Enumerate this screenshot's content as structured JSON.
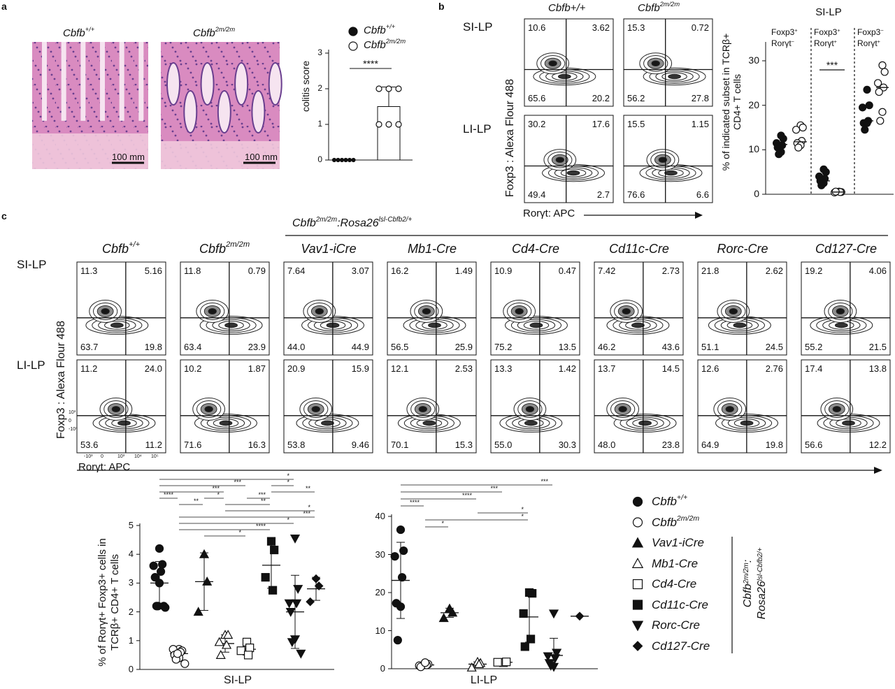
{
  "panel_labels": {
    "a": "a",
    "b": "b",
    "c": "c"
  },
  "genotypes": {
    "wt": {
      "base": "Cbfb",
      "sup": "+/+"
    },
    "mut": {
      "base": "Cbfb",
      "sup": "2m/2m"
    },
    "rescue_header": {
      "base1": "Cbfb",
      "sup1": "2m/2m",
      "mid": ":Rosa26",
      "sup2": "lsl-Cbfb2/+"
    }
  },
  "panel_a": {
    "scale_bar": "100 mm",
    "histology_colors": {
      "tissue": "#d98bc0",
      "nuclei": "#6a3f8f",
      "muscle": "#f0c8dc"
    }
  },
  "panel_b": {
    "row_labels": [
      "SI-LP",
      "LI-LP"
    ],
    "y_axis_label": "Foxp3 : Alexa Flour 488",
    "x_axis_label": "Rorγt: APC",
    "chart_title": "SI-LP",
    "subset_headers": [
      {
        "l1": "Foxp3",
        "s1": "+",
        "l2": "Rorγt",
        "s2": "−"
      },
      {
        "l1": "Foxp3",
        "s1": "+",
        "l2": "Rorγt",
        "s2": "+"
      },
      {
        "l1": "Foxp3",
        "s1": "−",
        "l2": "Rorγt",
        "s2": "+"
      }
    ]
  },
  "panel_c": {
    "row_labels": [
      "SI-LP",
      "LI-LP"
    ],
    "y_axis_label": "Foxp3 : Alexa Flour 488",
    "x_axis_label": "Rorγt: APC",
    "columns": [
      "Vav1-iCre",
      "Mb1-Cre",
      "Cd4-Cre",
      "Cd11c-Cre",
      "Rorc-Cre",
      "Cd127-Cre"
    ],
    "axis_ticks": {
      "y": [
        "10³",
        "0",
        "-10³"
      ],
      "x": [
        "-10³",
        "0",
        "10³",
        "10⁴",
        "10⁵"
      ]
    },
    "legend": [
      {
        "label": "Cbfb",
        "sup": "+/+",
        "marker": "circle-filled"
      },
      {
        "label": "Cbfb",
        "sup": "2m/2m",
        "marker": "circle-open"
      },
      {
        "label": "Vav1-iCre",
        "sup": "",
        "marker": "triangle-up-filled"
      },
      {
        "label": "Mb1-Cre",
        "sup": "",
        "marker": "triangle-up-open"
      },
      {
        "label": "Cd4-Cre",
        "sup": "",
        "marker": "square-open"
      },
      {
        "label": "Cd11c-Cre",
        "sup": "",
        "marker": "square-filled"
      },
      {
        "label": "Rorc-Cre",
        "sup": "",
        "marker": "triangle-down-filled"
      },
      {
        "label": "Cd127-Cre",
        "sup": "",
        "marker": "diamond-filled"
      }
    ],
    "legend_bracket": {
      "l1": "Cbfb",
      "s1": "2m/2m",
      "l1b": ":",
      "l2": "Rosa26",
      "s2": "lsl-Cbfb2/+"
    }
  },
  "flow_plots": {
    "panel_b": [
      {
        "tissue": "SI-LP",
        "genotype": "Cbfb+/+",
        "quadrants": {
          "ul": "10.6",
          "ur": "3.62",
          "ll": "65.6",
          "lr": "20.2"
        }
      },
      {
        "tissue": "SI-LP",
        "genotype": "Cbfb2m/2m",
        "quadrants": {
          "ul": "15.3",
          "ur": "0.72",
          "ll": "56.2",
          "lr": "27.8"
        }
      },
      {
        "tissue": "LI-LP",
        "genotype": "Cbfb+/+",
        "quadrants": {
          "ul": "30.2",
          "ur": "17.6",
          "ll": "49.4",
          "lr": "2.7"
        }
      },
      {
        "tissue": "LI-LP",
        "genotype": "Cbfb2m/2m",
        "quadrants": {
          "ul": "15.5",
          "ur": "1.15",
          "ll": "76.6",
          "lr": "6.6"
        }
      }
    ],
    "panel_c_si": [
      {
        "ul": "11.3",
        "ur": "5.16",
        "ll": "63.7",
        "lr": "19.8"
      },
      {
        "ul": "11.8",
        "ur": "0.79",
        "ll": "63.4",
        "lr": "23.9"
      },
      {
        "ul": "7.64",
        "ur": "3.07",
        "ll": "44.0",
        "lr": "44.9"
      },
      {
        "ul": "16.2",
        "ur": "1.49",
        "ll": "56.5",
        "lr": "25.9"
      },
      {
        "ul": "10.9",
        "ur": "0.47",
        "ll": "75.2",
        "lr": "13.5"
      },
      {
        "ul": "7.42",
        "ur": "2.73",
        "ll": "46.2",
        "lr": "43.6"
      },
      {
        "ul": "21.8",
        "ur": "2.62",
        "ll": "51.1",
        "lr": "24.5"
      },
      {
        "ul": "19.2",
        "ur": "4.06",
        "ll": "55.2",
        "lr": "21.5"
      }
    ],
    "panel_c_li": [
      {
        "ul": "11.2",
        "ur": "24.0",
        "ll": "53.6",
        "lr": "11.2"
      },
      {
        "ul": "10.2",
        "ur": "1.87",
        "ll": "71.6",
        "lr": "16.3"
      },
      {
        "ul": "20.9",
        "ur": "15.9",
        "ll": "53.8",
        "lr": "9.46"
      },
      {
        "ul": "12.1",
        "ur": "2.53",
        "ll": "70.1",
        "lr": "15.3"
      },
      {
        "ul": "13.3",
        "ur": "1.42",
        "ll": "55.0",
        "lr": "30.3"
      },
      {
        "ul": "13.7",
        "ur": "14.5",
        "ll": "48.0",
        "lr": "23.8"
      },
      {
        "ul": "12.6",
        "ur": "2.76",
        "ll": "64.9",
        "lr": "19.8"
      },
      {
        "ul": "17.4",
        "ur": "13.8",
        "ll": "56.6",
        "lr": "12.2"
      }
    ]
  },
  "chart_data": [
    {
      "id": "colitis",
      "type": "bar",
      "ylabel": "colitis score",
      "ylim": [
        0,
        3
      ],
      "yticks": [
        "0",
        "1",
        "2",
        "3"
      ],
      "categories": [
        "Cbfb+/+",
        "Cbfb2m/2m"
      ],
      "series": [
        {
          "name": "Cbfb+/+",
          "marker": "circle-filled",
          "points": [
            0,
            0,
            0,
            0,
            0,
            0
          ],
          "mean": 0
        },
        {
          "name": "Cbfb2m/2m",
          "marker": "circle-open",
          "points": [
            2,
            2,
            2,
            1,
            1,
            1
          ],
          "mean": 1.5,
          "sd": 0.55
        }
      ],
      "significance": [
        {
          "from": 0,
          "to": 1,
          "label": "****"
        }
      ]
    },
    {
      "id": "b_subsets",
      "type": "scatter",
      "title": "SI-LP",
      "ylabel": "% of indicated subset in TCRβ+ CD4+ T cells",
      "ylim": [
        0,
        30
      ],
      "yticks": [
        "0",
        "10",
        "20",
        "30"
      ],
      "groups": [
        {
          "wt": [
            13.2,
            12.5,
            11.5,
            11,
            10.5,
            9.5,
            9.0
          ],
          "mut": [
            15.5,
            15,
            14.5,
            12,
            11.5,
            11,
            10.5
          ],
          "wt_mean": 11.2,
          "mut_mean": 11.8
        },
        {
          "wt": [
            5.6,
            5.0,
            4.0,
            3.5,
            3.0,
            2.5,
            2.0
          ],
          "mut": [
            0.6,
            0.5,
            0.4,
            0.5,
            0.6
          ],
          "wt_mean": 3.0,
          "mut_mean": 0.5
        },
        {
          "wt": [
            23.5,
            20,
            19.5,
            16.5,
            16,
            16,
            14.5
          ],
          "mut": [
            29,
            27.5,
            25,
            24,
            23,
            18.5,
            16.5
          ],
          "wt_mean": 16.5,
          "mut_mean": 24
        }
      ],
      "significance": [
        {
          "group": 1,
          "label": "***"
        }
      ]
    },
    {
      "id": "c_si",
      "type": "scatter",
      "xlabel": "SI-LP",
      "ylabel": "% of Rorγt+ Foxp3+ cells in TCRβ+ CD4+ T cells",
      "ylim": [
        0,
        5
      ],
      "yticks": [
        "0",
        "1",
        "2",
        "3",
        "4",
        "5"
      ],
      "series": [
        {
          "name": "Cbfb+/+",
          "points": [
            4.2,
            3.65,
            3.6,
            3.4,
            3.2,
            3.0,
            2.2,
            2.15,
            2.2,
            2.2
          ],
          "mean": 3.0,
          "sd": 0.75
        },
        {
          "name": "Cbfb2m/2m",
          "points": [
            0.7,
            0.65,
            0.7,
            0.6,
            0.5,
            0.4,
            0.35,
            0.2,
            0.55
          ],
          "mean": 0.55,
          "sd": 0.15
        },
        {
          "name": "Vav1-iCre",
          "points": [
            4.0,
            3.05,
            2.0
          ],
          "mean": 3.05,
          "sd": 1.0
        },
        {
          "name": "Mb1-Cre",
          "points": [
            1.2,
            1.2,
            0.95,
            0.85,
            0.5
          ],
          "mean": 0.9,
          "sd": 0.3
        },
        {
          "name": "Cd4-Cre",
          "points": [
            0.95,
            0.75,
            0.65,
            0.5
          ],
          "mean": 0.7,
          "sd": 0.2
        },
        {
          "name": "Cd11c-Cre",
          "points": [
            4.45,
            4.15,
            3.2,
            2.75
          ],
          "mean": 3.62,
          "sd": 0.8
        },
        {
          "name": "Rorc-Cre",
          "points": [
            4.55,
            2.8,
            2.3,
            2.3,
            2.0,
            1.05,
            0.95,
            0.55
          ],
          "mean": 2.0,
          "sd": 1.27
        },
        {
          "name": "Cd127-Cre",
          "points": [
            3.15,
            2.9,
            2.35
          ],
          "mean": 2.8,
          "sd": 0.4
        }
      ],
      "significance": [
        {
          "from": 0,
          "to": 6,
          "label": "*"
        },
        {
          "from": 5,
          "to": 6,
          "label": "*"
        },
        {
          "from": 0,
          "to": 4,
          "label": "***"
        },
        {
          "from": 5,
          "to": 7,
          "label": "**"
        },
        {
          "from": 0,
          "to": 3,
          "label": "***"
        },
        {
          "from": 4,
          "to": 5,
          "label": "***"
        },
        {
          "from": 3,
          "to": 7,
          "label": "*"
        },
        {
          "from": 0,
          "to": 1,
          "label": "****"
        },
        {
          "from": 3,
          "to": 5,
          "label": "**"
        },
        {
          "from": 1,
          "to": 7,
          "label": "***"
        },
        {
          "from": 1,
          "to": 6,
          "label": "*"
        },
        {
          "from": 1,
          "to": 5,
          "label": "****"
        },
        {
          "from": 1,
          "to": 2,
          "label": "**"
        },
        {
          "from": 2,
          "to": 4,
          "label": "*"
        },
        {
          "from": 2,
          "to": 3,
          "label": "*"
        }
      ]
    },
    {
      "id": "c_li",
      "type": "scatter",
      "xlabel": "LI-LP",
      "ylim": [
        0,
        40
      ],
      "yticks": [
        "0",
        "10",
        "20",
        "30",
        "40"
      ],
      "series": [
        {
          "name": "Cbfb+/+",
          "points": [
            36.5,
            31,
            29.5,
            24,
            17.2,
            16.3,
            7.5
          ],
          "mean": 23.2,
          "sd": 10.0
        },
        {
          "name": "Cbfb2m/2m",
          "points": [
            1.5,
            1.2,
            0.8,
            1.0,
            0.5,
            1.6
          ],
          "mean": 1.0,
          "sd": 0.4
        },
        {
          "name": "Vav1-iCre",
          "points": [
            15.8,
            14.7,
            13.3
          ],
          "mean": 14.7,
          "sd": 1.2
        },
        {
          "name": "Mb1-Cre",
          "points": [
            1.8,
            1.5,
            0.3,
            1.2
          ],
          "mean": 1.2,
          "sd": 0.6
        },
        {
          "name": "Cd4-Cre",
          "points": [
            1.6,
            1.8,
            1.7
          ],
          "mean": 1.7,
          "sd": 0.1
        },
        {
          "name": "Cd11c-Cre",
          "points": [
            20,
            19.8,
            14.5,
            7.8,
            5.8
          ],
          "mean": 13.6,
          "sd": 6.6
        },
        {
          "name": "Rorc-Cre",
          "points": [
            14.5,
            4.2,
            3.3,
            2.8,
            1.5,
            0.5,
            0.8
          ],
          "mean": 3.5,
          "sd": 4.5
        },
        {
          "name": "Cd127-Cre",
          "points": [
            13.8
          ],
          "mean": 13.8
        }
      ],
      "significance": [
        {
          "from": 0,
          "to": 6,
          "label": "***"
        },
        {
          "from": 0,
          "to": 4,
          "label": "***"
        },
        {
          "from": 0,
          "to": 3,
          "label": "****"
        },
        {
          "from": 0,
          "to": 1,
          "label": "****"
        },
        {
          "from": 3,
          "to": 5,
          "label": "*"
        },
        {
          "from": 1,
          "to": 5,
          "label": "*"
        },
        {
          "from": 1,
          "to": 2,
          "label": "*"
        }
      ]
    }
  ]
}
